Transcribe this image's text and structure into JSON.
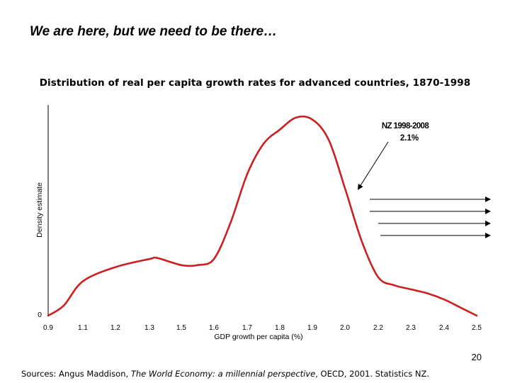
{
  "slide": {
    "title": "We are here, but we need to be there…",
    "page_number": "20",
    "sources": {
      "prefix": "Sources: Angus Maddison, ",
      "book_title": "The World Economy: a millennial perspective",
      "suffix": ", OECD, 2001. Statistics NZ."
    }
  },
  "chart_data": {
    "type": "line",
    "title": "Distribution of real per capita growth rates for advanced countries, 1870-1998",
    "xlabel": "GDP growth per capita (%)",
    "ylabel": "Density estimate",
    "y_tick_labels": [
      "0"
    ],
    "x_tick_labels": [
      "0.9",
      "1.1",
      "1.2",
      "1.3",
      "1.5",
      "1.6",
      "1.7",
      "1.8",
      "1.9",
      "2.0",
      "2.2",
      "2.3",
      "2.4",
      "2.5"
    ],
    "ylim": [
      0,
      1
    ],
    "grid": false,
    "series": [
      {
        "color": "#cc1f1f",
        "x": [
          0.9,
          0.99,
          1.1,
          1.2,
          1.3,
          1.35,
          1.5,
          1.55,
          1.6,
          1.65,
          1.7,
          1.75,
          1.8,
          1.85,
          1.9,
          1.95,
          2.0,
          2.1,
          2.2,
          2.25,
          2.3,
          2.35,
          2.4,
          2.45,
          2.5
        ],
        "y": [
          0.0,
          0.05,
          0.17,
          0.24,
          0.28,
          0.285,
          0.25,
          0.25,
          0.28,
          0.46,
          0.7,
          0.85,
          0.92,
          0.98,
          0.97,
          0.87,
          0.63,
          0.37,
          0.19,
          0.15,
          0.13,
          0.11,
          0.08,
          0.04,
          0.0
        ]
      }
    ],
    "annotation": {
      "label_line1": "NZ 1998-2008",
      "label_line2": "2.1%",
      "points_to_x": 2.1
    },
    "target_arrows": 4
  }
}
